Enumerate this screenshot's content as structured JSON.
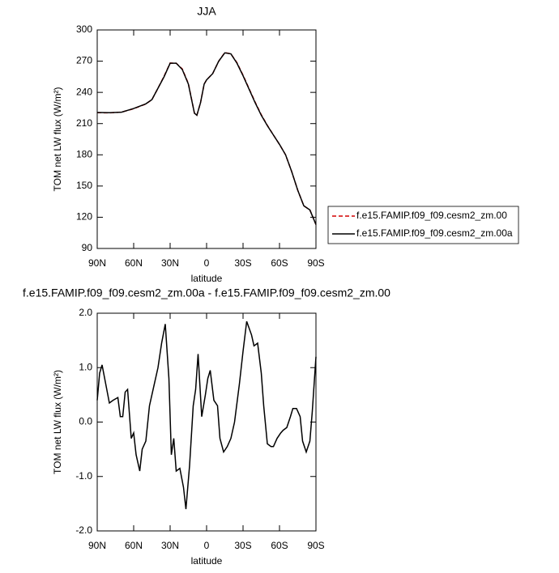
{
  "chart_data": [
    {
      "type": "line",
      "title": "JJA",
      "x_label": "latitude",
      "y_label": "TOM net LW flux (W/m²)",
      "xlim": [
        90,
        -90
      ],
      "xticks": [
        {
          "value": 90,
          "label": "90N"
        },
        {
          "value": 60,
          "label": "60N"
        },
        {
          "value": 30,
          "label": "30N"
        },
        0,
        {
          "value": -30,
          "label": "30S"
        },
        {
          "value": -60,
          "label": "60S"
        },
        {
          "value": -90,
          "label": "90S"
        }
      ],
      "ylim": [
        90,
        300
      ],
      "yticks": [
        90,
        120,
        150,
        180,
        210,
        240,
        270,
        300
      ],
      "legend": "right",
      "x": [
        90,
        80,
        70,
        60,
        50,
        45,
        40,
        35,
        30,
        25,
        20,
        15,
        10,
        8,
        5,
        2,
        0,
        -5,
        -10,
        -15,
        -20,
        -25,
        -30,
        -35,
        -40,
        -45,
        -50,
        -55,
        -60,
        -65,
        -70,
        -75,
        -80,
        -85,
        -90
      ],
      "series": [
        {
          "name": "f.e15.FAMIP.f09_f09.cesm2_zm.00",
          "color": "#d40000",
          "style": "dashed",
          "values": [
            220.5,
            220.3,
            221,
            224.3,
            228.8,
            233,
            244,
            255.5,
            268.2,
            268,
            262.5,
            248.5,
            220,
            218,
            230,
            248,
            252,
            258,
            270,
            278.3,
            277,
            268.5,
            256.5,
            243.5,
            230.5,
            218.5,
            208.3,
            199,
            190,
            180,
            164,
            146,
            131,
            127,
            113
          ]
        },
        {
          "name": "f.e15.FAMIP.f09_f09.cesm2_zm.00a",
          "color": "#000000",
          "style": "solid",
          "values": [
            220.7,
            220.5,
            221,
            224.5,
            229,
            233,
            244,
            255,
            268,
            268,
            262,
            248,
            220,
            218,
            230,
            248,
            252,
            258,
            270,
            278,
            277,
            268,
            256,
            243,
            230,
            218,
            208,
            199,
            190,
            180,
            164,
            146,
            131,
            127,
            113
          ]
        }
      ]
    },
    {
      "type": "line",
      "title": "f.e15.FAMIP.f09_f09.cesm2_zm.00a - f.e15.FAMIP.f09_f09.cesm2_zm.00",
      "x_label": "latitude",
      "y_label": "TOM net LW flux (W/m²)",
      "xlim": [
        90,
        -90
      ],
      "xticks": [
        {
          "value": 90,
          "label": "90N"
        },
        {
          "value": 60,
          "label": "60N"
        },
        {
          "value": 30,
          "label": "30N"
        },
        0,
        {
          "value": -30,
          "label": "30S"
        },
        {
          "value": -60,
          "label": "60S"
        },
        {
          "value": -90,
          "label": "90S"
        }
      ],
      "ylim": [
        -2,
        2
      ],
      "yticks": [
        {
          "value": -2,
          "label": "-2.0"
        },
        {
          "value": -1,
          "label": "-1.0"
        },
        {
          "value": 0,
          "label": "0.0"
        },
        {
          "value": 1,
          "label": "1.0"
        },
        {
          "value": 2,
          "label": "2.0"
        }
      ],
      "x": [
        90,
        88,
        86,
        83,
        80,
        77,
        73,
        71,
        69,
        67,
        65,
        62,
        60,
        58,
        55,
        53,
        50,
        47,
        43,
        40,
        37,
        34,
        31,
        29,
        27,
        25,
        22,
        19,
        17,
        14,
        11,
        9,
        7,
        4,
        1,
        -1,
        -3,
        -6,
        -9,
        -11,
        -14,
        -17,
        -20,
        -23,
        -27,
        -30,
        -33,
        -37,
        -39,
        -42,
        -45,
        -47,
        -50,
        -53,
        -55,
        -58,
        -61,
        -63,
        -66,
        -69,
        -71,
        -74,
        -77,
        -79,
        -82,
        -85,
        -87,
        -90
      ],
      "series": [
        {
          "color": "#000000",
          "style": "solid",
          "values": [
            0.4,
            0.9,
            1.05,
            0.7,
            0.35,
            0.4,
            0.45,
            0.1,
            0.1,
            0.55,
            0.6,
            -0.3,
            -0.2,
            -0.6,
            -0.9,
            -0.5,
            -0.35,
            0.3,
            0.7,
            1.0,
            1.45,
            1.8,
            0.8,
            -0.6,
            -0.3,
            -0.9,
            -0.85,
            -1.2,
            -1.6,
            -0.8,
            0.3,
            0.6,
            1.25,
            0.1,
            0.5,
            0.8,
            0.95,
            0.4,
            0.3,
            -0.3,
            -0.55,
            -0.45,
            -0.3,
            0.0,
            0.7,
            1.3,
            1.85,
            1.6,
            1.4,
            1.45,
            0.9,
            0.3,
            -0.4,
            -0.45,
            -0.45,
            -0.3,
            -0.2,
            -0.15,
            -0.1,
            0.1,
            0.25,
            0.25,
            0.1,
            -0.35,
            -0.55,
            -0.35,
            0.2,
            1.2
          ]
        }
      ]
    }
  ]
}
